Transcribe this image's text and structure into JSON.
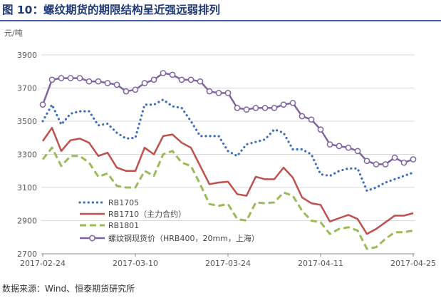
{
  "header": {
    "title": "图 10：螺纹期货的期限结构呈近强远弱排列"
  },
  "footer": {
    "source": "数据来源：Wind、恒泰期货研究所"
  },
  "chart_data": {
    "type": "line",
    "title": "",
    "ylabel": "元/吨",
    "ylim": [
      2700,
      3900
    ],
    "yticks": [
      2700,
      2900,
      3100,
      3300,
      3500,
      3700,
      3900
    ],
    "x_tick_labels": [
      "2017-02-24",
      "2017-03-10",
      "2017-03-24",
      "2017-04-11",
      "2017-04-25"
    ],
    "x_tick_index": [
      0,
      10,
      20,
      30,
      40
    ],
    "legend_position": "bottom-left",
    "series": [
      {
        "name": "RB1705",
        "color": "#3a6ebf",
        "style": "dotted",
        "values": [
          3500,
          3600,
          3480,
          3545,
          3560,
          3560,
          3475,
          3485,
          3430,
          3395,
          3400,
          3600,
          3600,
          3630,
          3590,
          3580,
          3500,
          3410,
          3410,
          3410,
          3320,
          3290,
          3360,
          3375,
          3390,
          3450,
          3430,
          3330,
          3330,
          3300,
          3180,
          3170,
          3200,
          3215,
          3215,
          3080,
          3100,
          3130,
          3150,
          3170,
          3190
        ]
      },
      {
        "name": "RB1710（主力合约）",
        "color": "#c0504d",
        "style": "solid",
        "values": [
          3380,
          3460,
          3320,
          3385,
          3395,
          3370,
          3290,
          3310,
          3220,
          3200,
          3200,
          3340,
          3300,
          3410,
          3420,
          3370,
          3340,
          3230,
          3120,
          3130,
          3135,
          3060,
          3050,
          3165,
          3150,
          3150,
          3220,
          3160,
          3040,
          3005,
          2995,
          2895,
          2915,
          2935,
          2910,
          2820,
          2850,
          2890,
          2930,
          2930,
          2945
        ]
      },
      {
        "name": "RB1801",
        "color": "#9bbb59",
        "style": "dashed",
        "values": [
          3270,
          3340,
          3230,
          3290,
          3290,
          3250,
          3165,
          3185,
          3110,
          3100,
          3100,
          3200,
          3170,
          3300,
          3320,
          3250,
          3230,
          3120,
          3000,
          2990,
          3000,
          2910,
          2900,
          3010,
          3005,
          3010,
          3070,
          3050,
          2960,
          2900,
          2890,
          2820,
          2850,
          2860,
          2840,
          2730,
          2740,
          2790,
          2830,
          2830,
          2840
        ]
      },
      {
        "name": "螺纹钢现货价（HRB400，20mm，上海）",
        "color": "#8064a2",
        "style": "solid-marker",
        "values": [
          3600,
          3750,
          3760,
          3760,
          3760,
          3740,
          3740,
          3730,
          3720,
          3680,
          3690,
          3730,
          3750,
          3790,
          3780,
          3750,
          3750,
          3740,
          3680,
          3670,
          3670,
          3580,
          3570,
          3580,
          3580,
          3580,
          3600,
          3610,
          3530,
          3510,
          3450,
          3360,
          3350,
          3340,
          3320,
          3260,
          3240,
          3240,
          3280,
          3250,
          3270
        ]
      }
    ]
  }
}
